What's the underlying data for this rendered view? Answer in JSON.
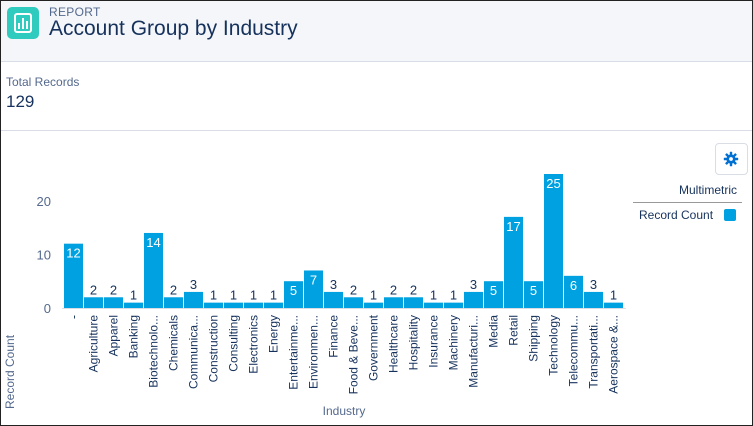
{
  "header": {
    "eyebrow": "REPORT",
    "title": "Account Group by Industry",
    "icon": "report-chart-icon"
  },
  "summary": {
    "label": "Total Records",
    "value": "129"
  },
  "settings": {
    "icon": "gear-icon"
  },
  "legend": {
    "title": "Multimetric",
    "items": [
      {
        "label": "Record Count",
        "color": "#00a1e0"
      }
    ]
  },
  "chart_data": {
    "type": "bar",
    "xlabel": "Industry",
    "ylabel": "Record Count",
    "ylim": [
      0,
      25
    ],
    "yticks": [
      0,
      10,
      20
    ],
    "grid": false,
    "legend_position": "right",
    "bar_color": "#00a1e0",
    "categories": [
      "-",
      "Agriculture",
      "Apparel",
      "Banking",
      "Biotechnolo...",
      "Chemicals",
      "Communica...",
      "Construction",
      "Consulting",
      "Electronics",
      "Energy",
      "Entertainme...",
      "Environmen...",
      "Finance",
      "Food & Beve...",
      "Government",
      "Healthcare",
      "Hospitality",
      "Insurance",
      "Machinery",
      "Manufacturi...",
      "Media",
      "Retail",
      "Shipping",
      "Technology",
      "Telecommu...",
      "Transportati...",
      "Aerospace &..."
    ],
    "series": [
      {
        "name": "Record Count",
        "values": [
          12,
          2,
          2,
          1,
          14,
          2,
          3,
          1,
          1,
          1,
          1,
          5,
          7,
          3,
          2,
          1,
          2,
          2,
          1,
          1,
          3,
          5,
          17,
          5,
          25,
          6,
          3,
          1
        ]
      }
    ]
  }
}
